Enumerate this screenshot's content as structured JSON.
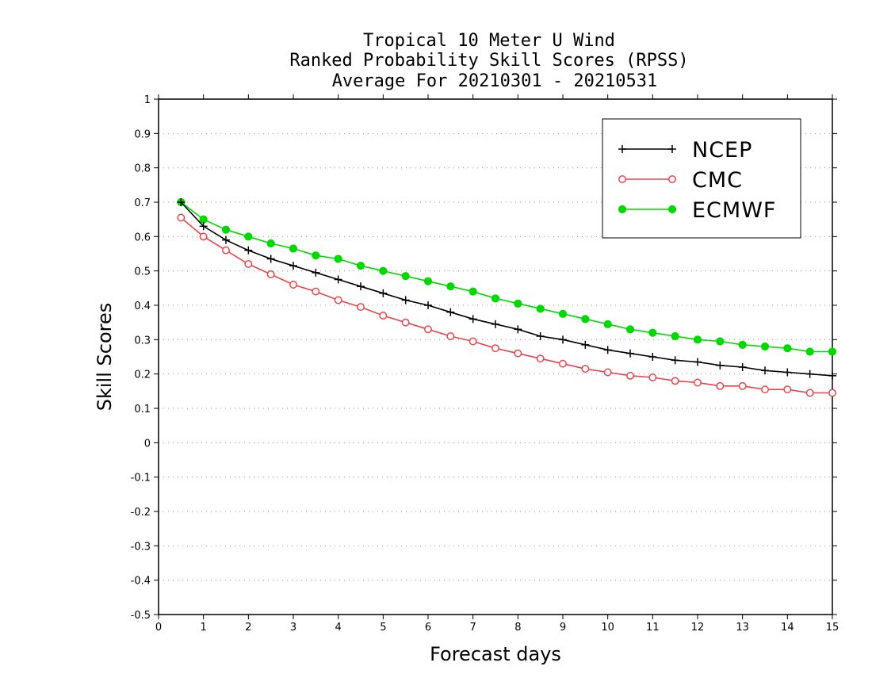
{
  "chart_data": {
    "type": "line",
    "title": [
      "Tropical 10 Meter U Wind",
      "Ranked Probability Skill Scores (RPSS)",
      "Average For 20210301 - 20210531"
    ],
    "xlabel": "Forecast days",
    "ylabel": "Skill Scores",
    "xlim": [
      0,
      15
    ],
    "ylim": [
      -0.5,
      1
    ],
    "xticks": [
      "0",
      "1",
      "2",
      "3",
      "4",
      "5",
      "6",
      "7",
      "8",
      "9",
      "10",
      "11",
      "12",
      "13",
      "14",
      "15"
    ],
    "yticks": [
      "1",
      "0.9",
      "0.8",
      "0.7",
      "0.6",
      "0.5",
      "0.4",
      "0.3",
      "0.2",
      "0.1",
      "0",
      "-0.1",
      "-0.2",
      "-0.3",
      "-0.4",
      "-0.5"
    ],
    "grid": "horizontal dotted",
    "legend_position": "top-right",
    "x": [
      0.5,
      1,
      1.5,
      2,
      2.5,
      3,
      3.5,
      4,
      4.5,
      5,
      5.5,
      6,
      6.5,
      7,
      7.5,
      8,
      8.5,
      9,
      9.5,
      10,
      10.5,
      11,
      11.5,
      12,
      12.5,
      13,
      13.5,
      14,
      14.5,
      15
    ],
    "series": [
      {
        "name": "NCEP",
        "color": "#000000",
        "marker": "plus",
        "values": [
          0.7,
          0.63,
          0.59,
          0.56,
          0.535,
          0.515,
          0.495,
          0.475,
          0.455,
          0.435,
          0.415,
          0.4,
          0.38,
          0.36,
          0.345,
          0.33,
          0.31,
          0.3,
          0.285,
          0.27,
          0.26,
          0.25,
          0.24,
          0.235,
          0.225,
          0.22,
          0.21,
          0.205,
          0.2,
          0.195
        ]
      },
      {
        "name": "CMC",
        "color": "#e8454a",
        "marker": "open-circle",
        "values": [
          0.655,
          0.6,
          0.56,
          0.52,
          0.49,
          0.46,
          0.44,
          0.415,
          0.395,
          0.37,
          0.35,
          0.33,
          0.31,
          0.295,
          0.275,
          0.26,
          0.245,
          0.23,
          0.215,
          0.205,
          0.195,
          0.19,
          0.18,
          0.175,
          0.165,
          0.165,
          0.155,
          0.155,
          0.145,
          0.145
        ]
      },
      {
        "name": "ECMWF",
        "color": "#00d900",
        "marker": "filled-circle",
        "values": [
          0.7,
          0.65,
          0.62,
          0.6,
          0.58,
          0.565,
          0.545,
          0.535,
          0.515,
          0.5,
          0.485,
          0.47,
          0.455,
          0.44,
          0.42,
          0.405,
          0.39,
          0.375,
          0.36,
          0.345,
          0.33,
          0.32,
          0.31,
          0.3,
          0.295,
          0.285,
          0.28,
          0.275,
          0.265,
          0.265
        ]
      }
    ]
  }
}
